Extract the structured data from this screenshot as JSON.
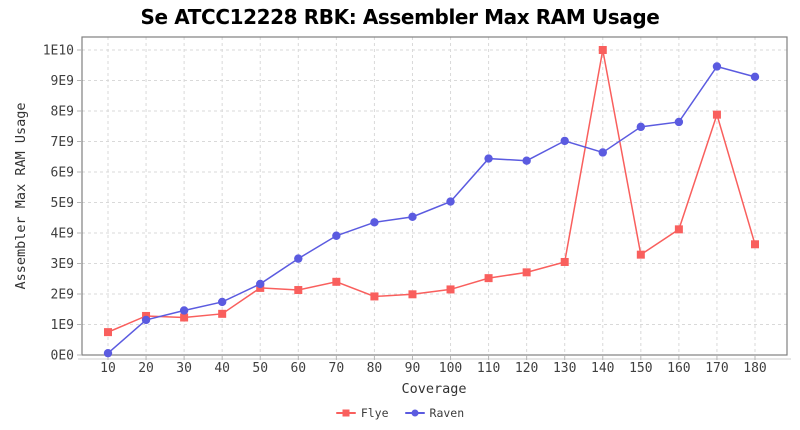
{
  "chart": {
    "title": "Se ATCC12228 RBK: Assembler Max RAM Usage",
    "xlabel": "Coverage",
    "ylabel": "Assembler Max RAM Usage"
  },
  "chart_data": {
    "type": "line",
    "title": "Se ATCC12228 RBK: Assembler Max RAM Usage",
    "xlabel": "Coverage",
    "ylabel": "Assembler Max RAM Usage",
    "x": [
      10,
      20,
      30,
      40,
      50,
      60,
      70,
      80,
      90,
      100,
      110,
      120,
      130,
      140,
      150,
      160,
      170,
      180
    ],
    "series": [
      {
        "name": "Flye",
        "color": "#f95f5d",
        "marker": "square",
        "values": [
          750000000,
          1280000000,
          1230000000,
          1350000000,
          2200000000,
          2130000000,
          2400000000,
          1920000000,
          1990000000,
          2150000000,
          2520000000,
          2710000000,
          3050000000,
          10000000000,
          3290000000,
          4120000000,
          7880000000,
          3630000000
        ]
      },
      {
        "name": "Raven",
        "color": "#5b5be0",
        "marker": "circle",
        "values": [
          60000000,
          1150000000,
          1460000000,
          1740000000,
          2330000000,
          3160000000,
          3910000000,
          4350000000,
          4530000000,
          5030000000,
          6440000000,
          6370000000,
          7020000000,
          6640000000,
          7480000000,
          7640000000,
          9460000000,
          9120000000
        ]
      }
    ],
    "ylim": [
      0,
      10000000000
    ],
    "ytick_values": [
      0,
      1000000000,
      2000000000,
      3000000000,
      4000000000,
      5000000000,
      6000000000,
      7000000000,
      8000000000,
      9000000000,
      10000000000
    ],
    "ytick_labels": [
      "0E0",
      "1E9",
      "2E9",
      "3E9",
      "4E9",
      "5E9",
      "6E9",
      "7E9",
      "8E9",
      "9E9",
      "1E10"
    ],
    "grid": true,
    "legend_position": "bottom",
    "style": {
      "grid_color": "#d9d9d9",
      "border_color": "#808080",
      "tick_color": "#b5b5b5",
      "axis_line_color": "#cfcfcf",
      "tick_label_color": "#3f3f3f"
    }
  }
}
